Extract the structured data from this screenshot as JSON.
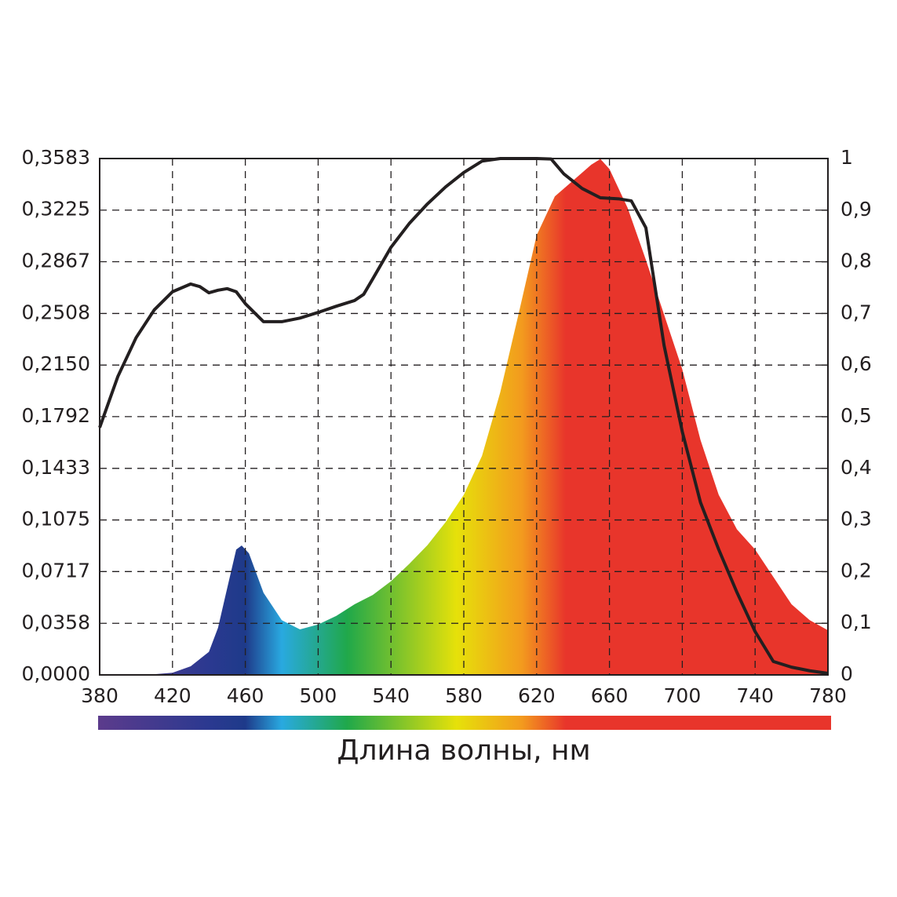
{
  "chart_data": {
    "type": "area",
    "x_label": "Длина волны, нм",
    "xlim": [
      380,
      780
    ],
    "xticks": [
      380,
      420,
      460,
      500,
      540,
      580,
      620,
      660,
      700,
      740,
      780
    ],
    "ylim": [
      0,
      0.3583
    ],
    "yticks": [
      {
        "value": 0,
        "label": "0,0000"
      },
      {
        "value": 0.0358,
        "label": "0,0358"
      },
      {
        "value": 0.0717,
        "label": "0,0717"
      },
      {
        "value": 0.1075,
        "label": "0,1075"
      },
      {
        "value": 0.1433,
        "label": "0,1433"
      },
      {
        "value": 0.1792,
        "label": "0,1792"
      },
      {
        "value": 0.215,
        "label": "0,2150"
      },
      {
        "value": 0.2508,
        "label": "0,2508"
      },
      {
        "value": 0.2867,
        "label": "0,2867"
      },
      {
        "value": 0.3225,
        "label": "0,3225"
      },
      {
        "value": 0.3583,
        "label": "0,3583"
      }
    ],
    "y2lim": [
      0,
      1
    ],
    "y2ticks": [
      0,
      {
        "value": 0.1,
        "label": "0,1"
      },
      {
        "value": 0.2,
        "label": "0,2"
      },
      {
        "value": 0.3,
        "label": "0,3"
      },
      {
        "value": 0.4,
        "label": "0,4"
      },
      {
        "value": 0.5,
        "label": "0,5"
      },
      {
        "value": 0.6,
        "label": "0,6"
      },
      {
        "value": 0.7,
        "label": "0,7"
      },
      {
        "value": 0.8,
        "label": "0,8"
      },
      {
        "value": 0.9,
        "label": "0,9"
      },
      1
    ],
    "grid": true,
    "series": [
      {
        "type": "area",
        "color": "#e8352b",
        "x": [
          380,
          390,
          400,
          410,
          420,
          430,
          440,
          445,
          450,
          455,
          458,
          462,
          470,
          480,
          490,
          500,
          510,
          520,
          530,
          540,
          550,
          560,
          570,
          580,
          590,
          600,
          610,
          620,
          630,
          640,
          650,
          655,
          660,
          670,
          680,
          690,
          700,
          710,
          720,
          730,
          740,
          750,
          760,
          770,
          780
        ],
        "values": [
          0,
          0,
          0.0003,
          0.0005,
          0.0015,
          0.006,
          0.016,
          0.0327,
          0.06,
          0.087,
          0.0898,
          0.0843,
          0.057,
          0.038,
          0.0316,
          0.035,
          0.041,
          0.049,
          0.0555,
          0.065,
          0.077,
          0.09,
          0.106,
          0.125,
          0.152,
          0.196,
          0.25,
          0.305,
          0.332,
          0.343,
          0.354,
          0.358,
          0.351,
          0.324,
          0.288,
          0.25,
          0.212,
          0.163,
          0.125,
          0.101,
          0.087,
          0.068,
          0.049,
          0.038,
          0.031
        ]
      },
      {
        "type": "line",
        "color": "#231f20",
        "axis": "y2",
        "x": [
          380,
          390,
          400,
          410,
          420,
          430,
          435,
          440,
          445,
          450,
          455,
          460,
          470,
          480,
          490,
          500,
          510,
          520,
          525,
          530,
          540,
          550,
          560,
          570,
          580,
          590,
          600,
          620,
          628,
          635,
          645,
          655,
          665,
          672,
          680,
          690,
          700,
          710,
          720,
          730,
          740,
          750,
          760,
          770,
          780
        ],
        "values": [
          0.479,
          0.578,
          0.653,
          0.707,
          0.742,
          0.757,
          0.752,
          0.74,
          0.745,
          0.748,
          0.742,
          0.719,
          0.684,
          0.684,
          0.691,
          0.702,
          0.714,
          0.725,
          0.737,
          0.767,
          0.828,
          0.874,
          0.912,
          0.945,
          0.973,
          0.995,
          1,
          1,
          0.999,
          0.97,
          0.942,
          0.924,
          0.922,
          0.918,
          0.866,
          0.638,
          0.471,
          0.334,
          0.243,
          0.16,
          0.084,
          0.026,
          0.015,
          0.008,
          0.003
        ]
      }
    ]
  }
}
